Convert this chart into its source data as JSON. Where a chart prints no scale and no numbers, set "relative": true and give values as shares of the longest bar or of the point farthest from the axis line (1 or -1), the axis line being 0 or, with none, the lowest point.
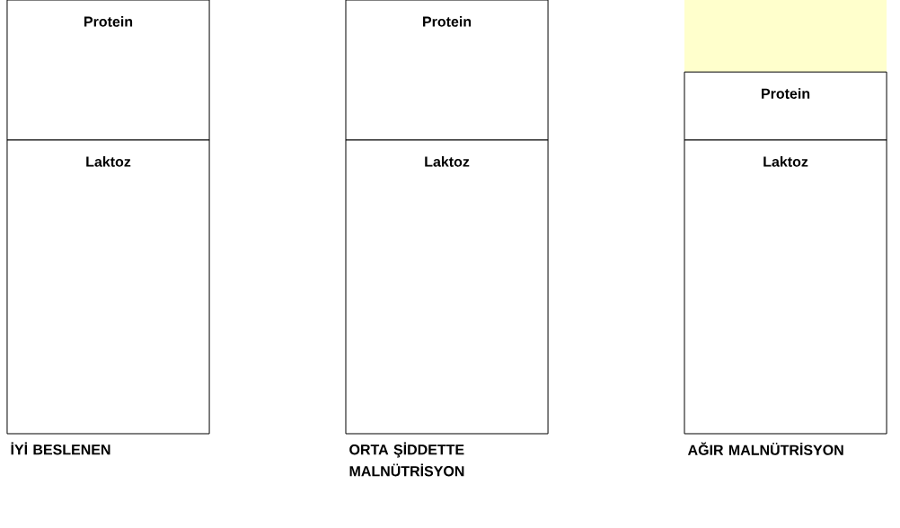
{
  "chart_data": {
    "type": "bar",
    "stacked": true,
    "relative": true,
    "categories": [
      "İYİ BESLENEN",
      "ORTA ŞİDDETTE MALNÜTRİSYON",
      "AĞIR MALNÜTRİSYON"
    ],
    "series": [
      {
        "name": "Laktoz",
        "color": "#ffffff",
        "values": [
          0.677,
          0.677,
          0.677
        ]
      },
      {
        "name": "Protein",
        "color": "#ffffff",
        "values": [
          0.323,
          0.323,
          0.157
        ]
      },
      {
        "color": "#ffffcc",
        "values": [
          null,
          null,
          0.166
        ]
      }
    ]
  }
}
